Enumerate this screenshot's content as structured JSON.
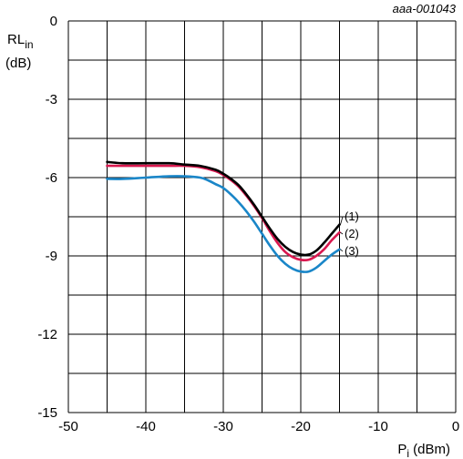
{
  "chart_data": {
    "type": "line",
    "doc_id": "aaa-001043",
    "ylabel_main": "RL",
    "ylabel_sub": "in",
    "ylabel_unit": "(dB)",
    "xlabel_main": "P",
    "xlabel_sub": "i",
    "xlabel_unit": " (dBm)",
    "xlim": [
      -50,
      0
    ],
    "ylim": [
      -15,
      0
    ],
    "x_ticks": [
      -50,
      -40,
      -30,
      -20,
      -10,
      0
    ],
    "y_ticks": [
      0,
      -3,
      -6,
      -9,
      -12,
      -15
    ],
    "grid": true,
    "series": [
      {
        "name": "(1)",
        "color": "#000000",
        "x": [
          -45,
          -43,
          -40,
          -37,
          -35,
          -33,
          -31,
          -30,
          -29,
          -28,
          -27,
          -26,
          -25,
          -24,
          -23,
          -22,
          -21,
          -20,
          -19,
          -18,
          -17,
          -16,
          -15
        ],
        "y": [
          -5.4,
          -5.45,
          -5.45,
          -5.45,
          -5.5,
          -5.55,
          -5.7,
          -5.85,
          -6.05,
          -6.3,
          -6.65,
          -7.05,
          -7.5,
          -7.95,
          -8.35,
          -8.65,
          -8.85,
          -8.95,
          -8.95,
          -8.8,
          -8.5,
          -8.15,
          -7.8
        ]
      },
      {
        "name": "(2)",
        "color": "#d9184f",
        "x": [
          -45,
          -43,
          -40,
          -37,
          -35,
          -33,
          -31,
          -30,
          -29,
          -28,
          -27,
          -26,
          -25,
          -24,
          -23,
          -22,
          -21,
          -20,
          -19,
          -18,
          -17,
          -16,
          -15
        ],
        "y": [
          -5.55,
          -5.55,
          -5.55,
          -5.55,
          -5.55,
          -5.6,
          -5.75,
          -5.9,
          -6.1,
          -6.35,
          -6.7,
          -7.1,
          -7.55,
          -8.05,
          -8.5,
          -8.85,
          -9.05,
          -9.15,
          -9.15,
          -9.0,
          -8.75,
          -8.4,
          -8.1
        ]
      },
      {
        "name": "(3)",
        "color": "#1a86c8",
        "x": [
          -45,
          -43,
          -40,
          -37,
          -35,
          -33,
          -32,
          -31,
          -30,
          -29,
          -28,
          -27,
          -26,
          -25,
          -24,
          -23,
          -22,
          -21,
          -20,
          -19,
          -18,
          -17,
          -16,
          -15
        ],
        "y": [
          -6.05,
          -6.05,
          -6.0,
          -5.95,
          -5.95,
          -6.0,
          -6.1,
          -6.25,
          -6.4,
          -6.65,
          -6.95,
          -7.3,
          -7.7,
          -8.15,
          -8.6,
          -9.0,
          -9.3,
          -9.5,
          -9.6,
          -9.6,
          -9.45,
          -9.2,
          -8.95,
          -8.75
        ]
      }
    ]
  }
}
